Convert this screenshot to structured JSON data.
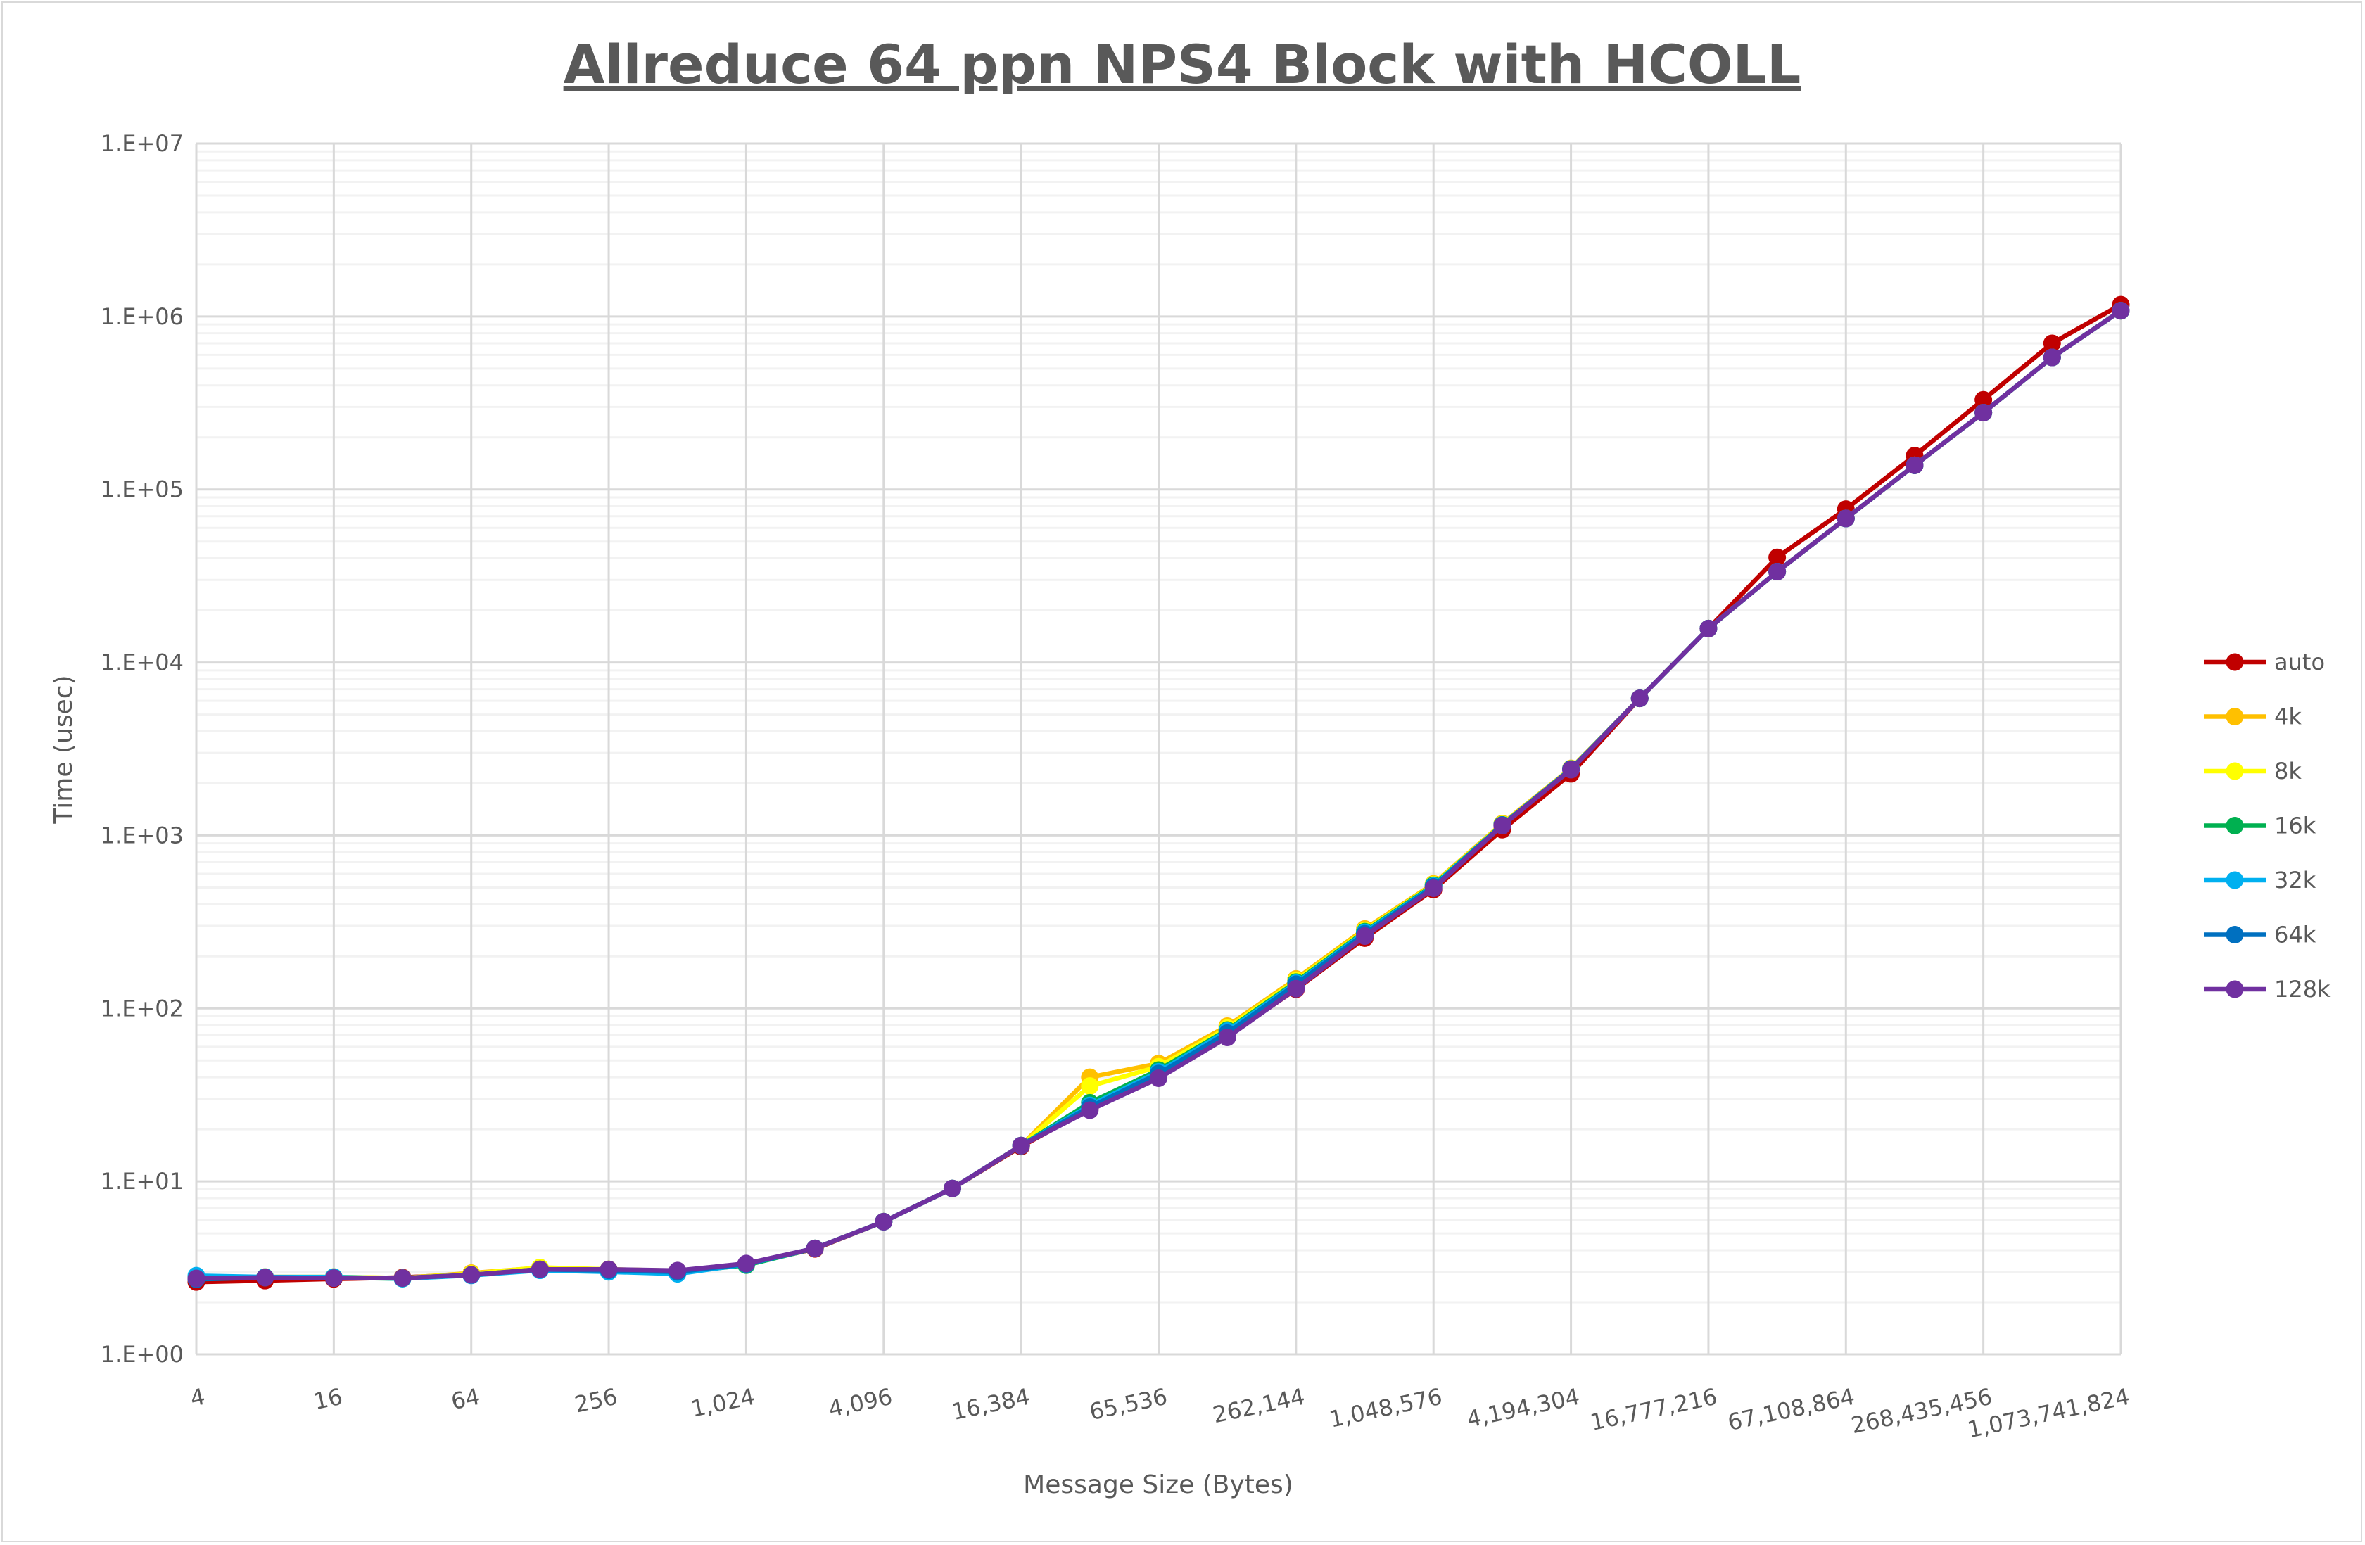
{
  "chart_data": {
    "type": "line",
    "title": "Allreduce 64 ppn NPS4 Block with HCOLL",
    "xlabel": "Message Size (Bytes)",
    "ylabel": "Time (usec)",
    "x_scale": "log2",
    "y_scale": "log10",
    "ylim": [
      1,
      10000000
    ],
    "y_tick_labels": [
      "1.E+00",
      "1.E+01",
      "1.E+02",
      "1.E+03",
      "1.E+04",
      "1.E+05",
      "1.E+06",
      "1.E+07"
    ],
    "x_tick_labels": [
      "4",
      "16",
      "64",
      "256",
      "1,024",
      "4,096",
      "16,384",
      "65,536",
      "262,144",
      "1,048,576",
      "4,194,304",
      "16,777,216",
      "67,108,864",
      "268,435,456",
      "1,073,741,824"
    ],
    "grid": true,
    "legend_position": "right",
    "x": [
      4,
      8,
      16,
      32,
      64,
      128,
      256,
      512,
      1024,
      2048,
      4096,
      8192,
      16384,
      32768,
      65536,
      131072,
      262144,
      524288,
      1048576,
      2097152,
      4194304,
      8388608,
      16777216,
      33554432,
      67108864,
      134217728,
      268435456,
      536870912,
      1073741824
    ],
    "series": [
      {
        "name": "auto",
        "color": "#c00000",
        "values": [
          2.62,
          2.67,
          2.73,
          2.78,
          2.9,
          3.14,
          3.08,
          3.02,
          3.33,
          4.07,
          5.85,
          9.1,
          15.9,
          26.3,
          40,
          69,
          129,
          255,
          486,
          1080,
          2270,
          6200,
          15700,
          40500,
          77000,
          157000,
          330000,
          700000,
          1170000
        ]
      },
      {
        "name": "4k",
        "color": "#ffc000",
        "values": [
          2.75,
          2.8,
          2.8,
          2.76,
          2.95,
          3.16,
          3.1,
          3.04,
          3.3,
          4.1,
          5.85,
          9.1,
          16.1,
          40,
          48,
          79,
          148,
          288,
          525,
          1170,
          2440,
          6200,
          15700,
          33500,
          68000,
          138000,
          278000,
          580000,
          1080000
        ]
      },
      {
        "name": "8k",
        "color": "#ffff00",
        "values": [
          2.75,
          2.8,
          2.8,
          2.76,
          2.92,
          3.18,
          3.1,
          3.04,
          3.3,
          4.1,
          5.85,
          9.1,
          16.1,
          35.6,
          46,
          77,
          145,
          282,
          520,
          1160,
          2430,
          6200,
          15700,
          33500,
          68000,
          138000,
          278000,
          580000,
          1080000
        ]
      },
      {
        "name": "16k",
        "color": "#00b050",
        "values": [
          2.75,
          2.78,
          2.78,
          2.74,
          2.88,
          3.08,
          3.02,
          2.98,
          3.28,
          4.1,
          5.85,
          9.1,
          16.1,
          28.5,
          44,
          75,
          142,
          278,
          515,
          1150,
          2420,
          6200,
          15700,
          33500,
          68000,
          138000,
          278000,
          580000,
          1080000
        ]
      },
      {
        "name": "32k",
        "color": "#00b0f0",
        "values": [
          2.85,
          2.8,
          2.8,
          2.74,
          2.86,
          3.06,
          3.0,
          2.92,
          3.32,
          4.1,
          5.85,
          9.1,
          16.1,
          27.5,
          43,
          74,
          140,
          275,
          510,
          1150,
          2420,
          6200,
          15700,
          33500,
          68000,
          138000,
          278000,
          580000,
          1080000
        ]
      },
      {
        "name": "64k",
        "color": "#0070c0",
        "values": [
          2.72,
          2.78,
          2.76,
          2.76,
          2.88,
          3.1,
          3.06,
          3.0,
          3.33,
          4.1,
          5.85,
          9.1,
          16.1,
          26.9,
          42,
          72,
          138,
          270,
          505,
          1150,
          2420,
          6200,
          15700,
          33500,
          68000,
          138000,
          278000,
          580000,
          1080000
        ]
      },
      {
        "name": "128k",
        "color": "#7030a0",
        "values": [
          2.75,
          2.78,
          2.76,
          2.76,
          2.88,
          3.1,
          3.1,
          3.05,
          3.35,
          4.1,
          5.85,
          9.1,
          16.1,
          25.8,
          39.5,
          68,
          130,
          262,
          495,
          1140,
          2400,
          6200,
          15700,
          33500,
          68000,
          138000,
          278000,
          580000,
          1080000
        ]
      }
    ]
  }
}
